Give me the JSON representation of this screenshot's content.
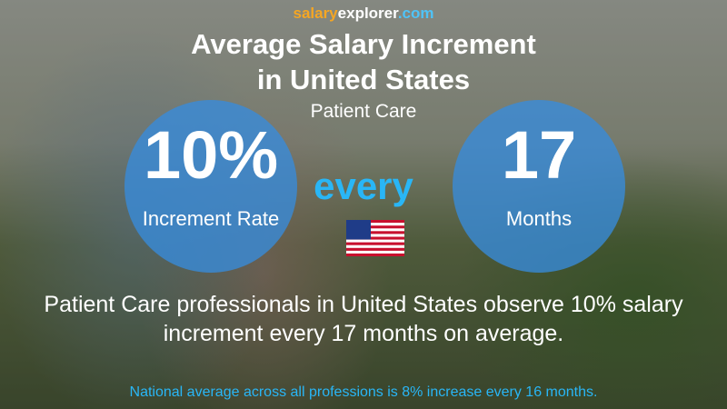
{
  "brand": {
    "parts": [
      "salary",
      "explorer",
      ".com"
    ]
  },
  "header": {
    "title_lines": [
      "Average Salary Increment",
      "in United States"
    ],
    "subtitle": "Patient Care"
  },
  "left_circle": {
    "value": "10%",
    "label": "Increment Rate"
  },
  "connector": "every",
  "right_circle": {
    "value": "17",
    "label": "Months"
  },
  "description_lines": [
    "Patient Care professionals in United States observe 10% salary",
    "increment every 17 months on average."
  ],
  "footnote": "National average across all professions is 8% increase every 16 months."
}
